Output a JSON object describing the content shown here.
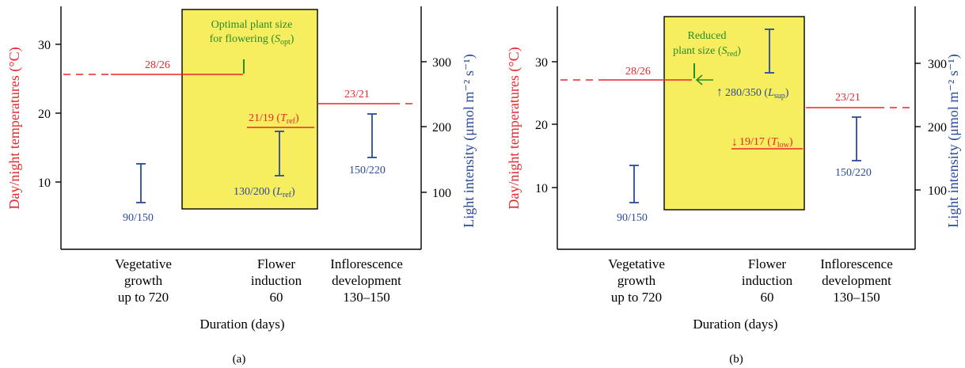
{
  "panels": [
    {
      "label": "(a)",
      "left_axis_label": "Day/night temperatures (°C)",
      "left_ticks": [
        "30",
        "20",
        "10"
      ],
      "right_ticks": [
        "300",
        "200",
        "100"
      ],
      "right_axis_label": "Light intensity (μmol m⁻² s⁻¹)",
      "x_axis_label": "Duration (days)",
      "phases": [
        {
          "lines": [
            "Vegetative",
            "growth",
            "up to 720"
          ]
        },
        {
          "lines": [
            "Flower",
            "induction",
            "60"
          ]
        },
        {
          "lines": [
            "Inflorescence",
            "development",
            "130–150"
          ]
        }
      ],
      "temps": [
        {
          "text": "28/26"
        },
        {
          "text": "21/19 (",
          "sym": "T",
          "sub": "ref",
          "tail": ")"
        },
        {
          "text": "23/21"
        }
      ],
      "lights": [
        {
          "text": "90/150"
        },
        {
          "text": "130/200 (",
          "sym": "L",
          "sub": "ref",
          "tail": ")"
        },
        {
          "text": "150/220"
        }
      ],
      "plant_note": {
        "line1": "Optimal plant size",
        "line2": "for flowering (",
        "sym": "S",
        "sub": "opt",
        "tail": ")"
      }
    },
    {
      "label": "(b)",
      "left_axis_label": "Day/night temperatures (°C)",
      "left_ticks": [
        "30",
        "20",
        "10"
      ],
      "right_ticks": [
        "300",
        "200",
        "100"
      ],
      "right_axis_label": "Light intensity (μmol m⁻² s⁻¹)",
      "x_axis_label": "Duration (days)",
      "phases": [
        {
          "lines": [
            "Vegetative",
            "growth",
            "up to 720"
          ]
        },
        {
          "lines": [
            "Flower",
            "induction",
            "60"
          ]
        },
        {
          "lines": [
            "Inflorescence",
            "development",
            "130–150"
          ]
        }
      ],
      "temps": [
        {
          "text": "28/26"
        },
        {
          "text": "19/17 (",
          "sym": "T",
          "sub": "low",
          "tail": ")"
        },
        {
          "text": "23/21"
        }
      ],
      "lights": [
        {
          "text": "90/150"
        },
        {
          "text": "280/350 (",
          "sym": "L",
          "sub": "sup",
          "tail": ")"
        },
        {
          "text": "150/220"
        }
      ],
      "plant_note": {
        "line1": "Reduced",
        "line2": "plant size (",
        "sym": "S",
        "sub": "red",
        "tail": ")"
      }
    }
  ],
  "colors": {
    "temperature": "#e8262d",
    "light": "#2b4a9b",
    "plant": "#2a8a2a",
    "induction_box": "#f7ee5f"
  }
}
